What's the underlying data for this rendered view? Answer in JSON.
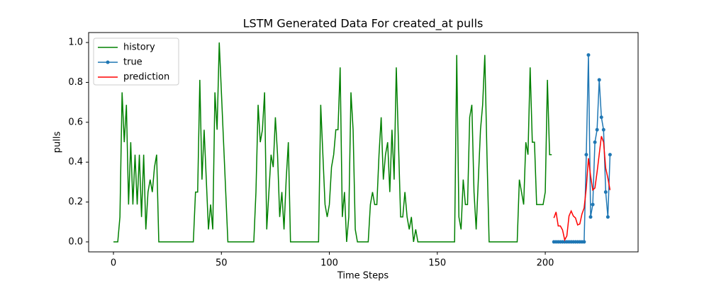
{
  "chart_data": {
    "type": "line",
    "title": "LSTM Generated Data For created_at pulls",
    "x_label": "Time Steps",
    "y_label": "pulls",
    "xlim": [
      -11.5,
      243
    ],
    "ylim": [
      -0.05,
      1.05
    ],
    "xticks": [
      0,
      50,
      100,
      150,
      200
    ],
    "yticks": [
      {
        "value": 0,
        "label": "0.0"
      },
      {
        "value": 0.2,
        "label": "0.2"
      },
      {
        "value": 0.4,
        "label": "0.4"
      },
      {
        "value": 0.6,
        "label": "0.6"
      },
      {
        "value": 0.8,
        "label": "0.8"
      },
      {
        "value": 1.0,
        "label": "1.0"
      }
    ],
    "legend": "upper left",
    "series": [
      {
        "name": "history",
        "color": "#008000",
        "marker": false,
        "x": [
          0,
          1,
          2,
          3,
          4,
          5,
          6,
          7,
          8,
          9,
          10,
          11,
          12,
          13,
          14,
          15,
          16,
          17,
          18,
          19,
          20,
          21,
          22,
          23,
          24,
          25,
          26,
          27,
          28,
          29,
          30,
          31,
          32,
          33,
          34,
          35,
          36,
          37,
          38,
          39,
          40,
          41,
          42,
          43,
          44,
          45,
          46,
          47,
          48,
          49,
          50,
          51,
          52,
          53,
          54,
          55,
          56,
          57,
          58,
          59,
          60,
          61,
          62,
          63,
          64,
          65,
          66,
          67,
          68,
          69,
          70,
          71,
          72,
          73,
          74,
          75,
          76,
          77,
          78,
          79,
          80,
          81,
          82,
          83,
          84,
          85,
          86,
          87,
          88,
          89,
          90,
          91,
          92,
          93,
          94,
          95,
          96,
          97,
          98,
          99,
          100,
          101,
          102,
          103,
          104,
          105,
          106,
          107,
          108,
          109,
          110,
          111,
          112,
          113,
          114,
          115,
          116,
          117,
          118,
          119,
          120,
          121,
          122,
          123,
          124,
          125,
          126,
          127,
          128,
          129,
          130,
          131,
          132,
          133,
          134,
          135,
          136,
          137,
          138,
          139,
          140,
          141,
          142,
          143,
          144,
          145,
          146,
          147,
          148,
          149,
          150,
          151,
          152,
          153,
          154,
          155,
          156,
          157,
          158,
          159,
          160,
          161,
          162,
          163,
          164,
          165,
          166,
          167,
          168,
          169,
          170,
          171,
          172,
          173,
          174,
          175,
          176,
          177,
          178,
          179,
          180,
          181,
          182,
          183,
          184,
          185,
          186,
          187,
          188,
          189,
          190,
          191,
          192,
          193,
          194,
          195,
          196,
          197,
          198,
          199,
          200,
          201,
          202,
          203
        ],
        "values": [
          0,
          0,
          0,
          0.125,
          0.75,
          0.5,
          0.6875,
          0.1875,
          0.5,
          0.1875,
          0.4375,
          0.1875,
          0.4375,
          0.125,
          0.4375,
          0.0625,
          0.25,
          0.3125,
          0.25,
          0.375,
          0.4375,
          0,
          0,
          0,
          0,
          0,
          0,
          0,
          0,
          0,
          0,
          0,
          0,
          0,
          0,
          0,
          0,
          0,
          0.25,
          0.25,
          0.8125,
          0.3125,
          0.5625,
          0.3125,
          0.0625,
          0.1875,
          0.0625,
          0.75,
          0.5625,
          1.0,
          0.75,
          0.5,
          0.25,
          0,
          0,
          0,
          0,
          0,
          0,
          0,
          0,
          0,
          0,
          0,
          0,
          0,
          0.25,
          0.6875,
          0.5,
          0.5625,
          0.75,
          0.0625,
          0.25,
          0.4375,
          0.375,
          0.625,
          0.4375,
          0.125,
          0.25,
          0.0625,
          0.3125,
          0.5,
          0,
          0,
          0,
          0,
          0,
          0,
          0,
          0,
          0,
          0,
          0,
          0,
          0,
          0,
          0.6875,
          0.4375,
          0.1875,
          0.125,
          0.1875,
          0.375,
          0.4375,
          0.5625,
          0.5625,
          0.875,
          0.125,
          0.25,
          0,
          0.125,
          0.75,
          0.5625,
          0.0625,
          0,
          0,
          0,
          0,
          0,
          0,
          0.1875,
          0.25,
          0.1875,
          0.1875,
          0.4375,
          0.625,
          0.3125,
          0.4375,
          0.5,
          0.25,
          0.5625,
          0.3125,
          0.875,
          0.5,
          0.125,
          0.125,
          0.25,
          0.125,
          0.0625,
          0.125,
          0,
          0.0625,
          0,
          0,
          0,
          0,
          0,
          0,
          0,
          0,
          0,
          0,
          0,
          0,
          0,
          0,
          0,
          0,
          0,
          0,
          0.9375,
          0.125,
          0.0625,
          0.3125,
          0.1875,
          0.1875,
          0.625,
          0.6875,
          0.25,
          0.0625,
          0.3125,
          0.5625,
          0.6875,
          0.9375,
          0.4375,
          0,
          0,
          0,
          0,
          0,
          0,
          0,
          0,
          0,
          0,
          0,
          0,
          0,
          0,
          0.3125,
          0.25,
          0.1875,
          0.5,
          0.4375,
          0.875,
          0.5,
          0.5,
          0.1875,
          0.1875,
          0.1875,
          0.1875,
          0.25,
          0.8125,
          0.4375,
          0.4375
        ]
      },
      {
        "name": "true",
        "color": "#1f77b4",
        "marker": true,
        "x": [
          204,
          205,
          206,
          207,
          208,
          209,
          210,
          211,
          212,
          213,
          214,
          215,
          216,
          217,
          218,
          219,
          220,
          221,
          222,
          223,
          224,
          225,
          226,
          227,
          228,
          229,
          230
        ],
        "values": [
          0,
          0,
          0,
          0,
          0,
          0,
          0,
          0,
          0,
          0,
          0,
          0,
          0,
          0,
          0,
          0.4375,
          0.9375,
          0.125,
          0.1875,
          0.5,
          0.5625,
          0.8125,
          0.625,
          0.5625,
          0.25,
          0.125,
          0.4375
        ]
      },
      {
        "name": "prediction",
        "color": "#ff0000",
        "marker": false,
        "x": [
          204,
          205,
          206,
          207,
          208,
          209,
          210,
          211,
          212,
          213,
          214,
          215,
          216,
          217,
          218,
          219,
          220,
          221,
          222,
          223,
          224,
          225,
          226,
          227,
          228,
          229,
          230
        ],
        "values": [
          0.12,
          0.15,
          0.08,
          0.08,
          0.06,
          0.01,
          0.03,
          0.13,
          0.155,
          0.13,
          0.12,
          0.085,
          0.09,
          0.14,
          0.17,
          0.27,
          0.42,
          0.33,
          0.26,
          0.27,
          0.35,
          0.44,
          0.53,
          0.5,
          0.37,
          0.32,
          0.26
        ]
      }
    ]
  }
}
